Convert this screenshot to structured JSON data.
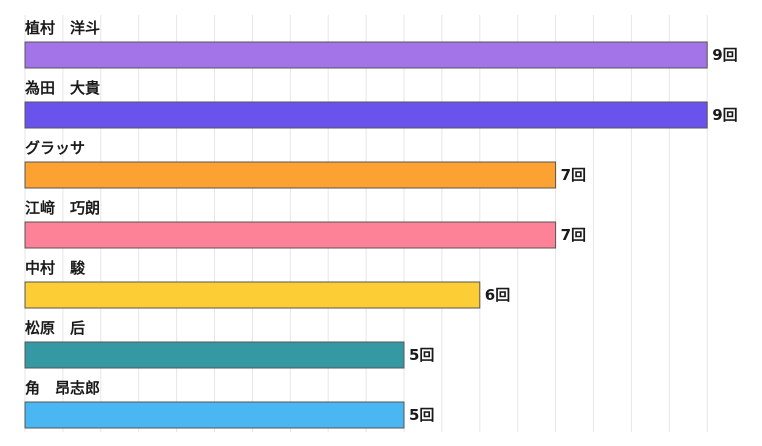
{
  "chart_data": {
    "type": "bar",
    "orientation": "horizontal",
    "categories": [
      "植村　洋斗",
      "為田　大貴",
      "グラッサ",
      "江﨑　巧朗",
      "中村　駿",
      "松原　后",
      "角　昂志郎"
    ],
    "values": [
      9,
      9,
      7,
      7,
      6,
      5,
      5
    ],
    "value_suffix": "回",
    "colors": [
      "#a374e8",
      "#6a52ec",
      "#fca232",
      "#fd8197",
      "#fdcd36",
      "#3599a3",
      "#4ab7f3"
    ],
    "xlim": [
      0,
      9
    ],
    "grid": true,
    "legend": "none"
  }
}
